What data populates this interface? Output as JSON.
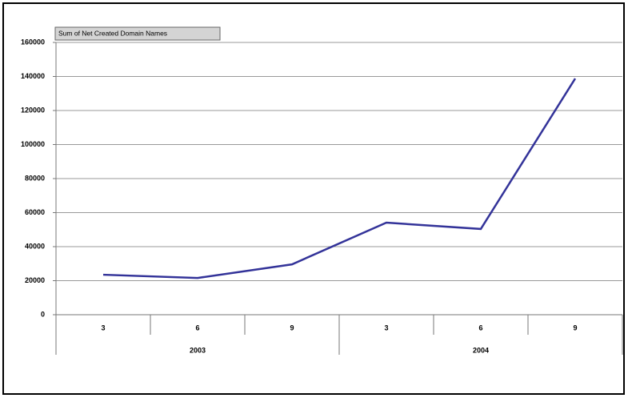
{
  "chart_data": {
    "type": "line",
    "legend": "Sum of Net Created Domain Names",
    "categories": [
      "3",
      "6",
      "9",
      "3",
      "6",
      "9"
    ],
    "category_groups": [
      "2003",
      "2004"
    ],
    "series": [
      {
        "name": "Sum of Net Created Domain Names",
        "color": "#333399",
        "values": [
          23500,
          21600,
          29600,
          54100,
          50400,
          138800
        ]
      }
    ],
    "ylim": [
      0,
      160000
    ],
    "yticks": [
      0,
      20000,
      40000,
      60000,
      80000,
      100000,
      120000,
      140000,
      160000
    ],
    "grid": true
  }
}
